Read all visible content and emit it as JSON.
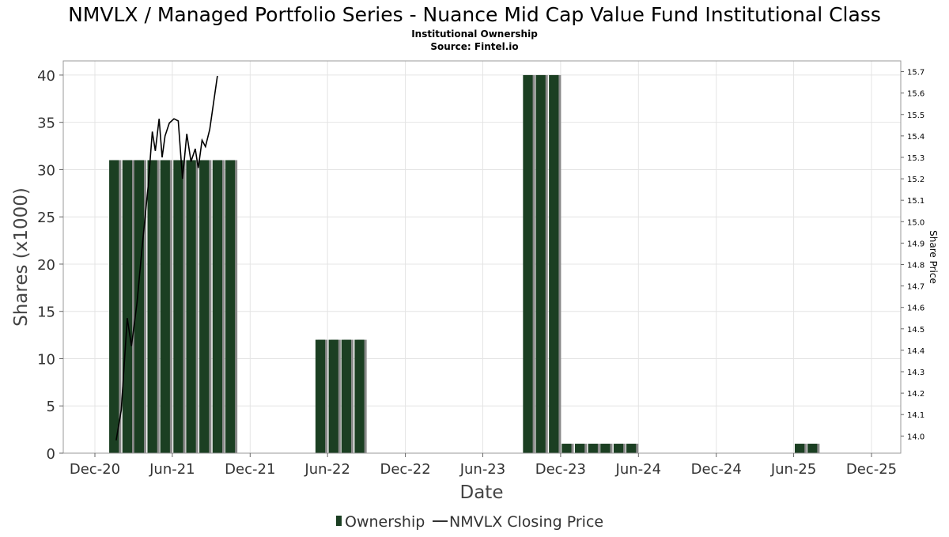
{
  "chart_data": {
    "type": "bar",
    "title": "NMVLX / Managed Portfolio Series - Nuance Mid Cap Value Fund Institutional Class",
    "subtitle": "Institutional Ownership",
    "source": "Source: Fintel.io",
    "xlabel": "Date",
    "ylabel": "Shares (x1000)",
    "y2label": "Share Price",
    "ylim": [
      0,
      41.5
    ],
    "y2lim": [
      13.92,
      15.75
    ],
    "grid": true,
    "legend_position": "bottom-center",
    "x_ticks": [
      "Dec-20",
      "Jun-21",
      "Dec-21",
      "Jun-22",
      "Dec-22",
      "Jun-23",
      "Dec-23",
      "Jun-24",
      "Dec-24",
      "Jun-25",
      "Dec-25"
    ],
    "y_ticks": [
      0,
      5,
      10,
      15,
      20,
      25,
      30,
      35,
      40
    ],
    "y2_ticks": [
      "14.0",
      "14.1",
      "14.2",
      "14.3",
      "14.4",
      "14.5",
      "14.6",
      "14.7",
      "14.8",
      "14.9",
      "15.0",
      "15.1",
      "15.2",
      "15.3",
      "15.4",
      "15.5",
      "15.6",
      "15.7"
    ],
    "series": [
      {
        "name": "Ownership",
        "type": "bar",
        "color": "#1b3f22",
        "points": [
          {
            "date": "2021-01-15",
            "value": 31
          },
          {
            "date": "2021-02-15",
            "value": 31
          },
          {
            "date": "2021-03-15",
            "value": 31
          },
          {
            "date": "2021-04-15",
            "value": 31
          },
          {
            "date": "2021-05-15",
            "value": 31
          },
          {
            "date": "2021-06-15",
            "value": 31
          },
          {
            "date": "2021-07-15",
            "value": 31
          },
          {
            "date": "2021-08-15",
            "value": 31
          },
          {
            "date": "2021-09-15",
            "value": 31
          },
          {
            "date": "2021-10-15",
            "value": 31
          },
          {
            "date": "2022-05-15",
            "value": 12
          },
          {
            "date": "2022-06-15",
            "value": 12
          },
          {
            "date": "2022-07-15",
            "value": 12
          },
          {
            "date": "2022-08-15",
            "value": 12
          },
          {
            "date": "2023-09-15",
            "value": 40
          },
          {
            "date": "2023-10-15",
            "value": 40
          },
          {
            "date": "2023-11-15",
            "value": 40
          },
          {
            "date": "2023-12-15",
            "value": 1
          },
          {
            "date": "2024-01-15",
            "value": 1
          },
          {
            "date": "2024-02-15",
            "value": 1
          },
          {
            "date": "2024-03-15",
            "value": 1
          },
          {
            "date": "2024-04-15",
            "value": 1
          },
          {
            "date": "2024-05-15",
            "value": 1
          },
          {
            "date": "2025-06-15",
            "value": 1
          },
          {
            "date": "2025-07-15",
            "value": 1
          }
        ]
      },
      {
        "name": "NMVLX Closing Price",
        "type": "line",
        "axis": "right",
        "color": "#000000",
        "points": [
          {
            "date": "2021-01-20",
            "value": 13.98
          },
          {
            "date": "2021-02-01",
            "value": 14.12
          },
          {
            "date": "2021-02-15",
            "value": 14.55
          },
          {
            "date": "2021-02-25",
            "value": 14.42
          },
          {
            "date": "2021-03-10",
            "value": 14.62
          },
          {
            "date": "2021-03-22",
            "value": 14.88
          },
          {
            "date": "2021-04-05",
            "value": 15.16
          },
          {
            "date": "2021-04-15",
            "value": 15.42
          },
          {
            "date": "2021-04-22",
            "value": 15.33
          },
          {
            "date": "2021-05-01",
            "value": 15.48
          },
          {
            "date": "2021-05-08",
            "value": 15.3
          },
          {
            "date": "2021-05-15",
            "value": 15.4
          },
          {
            "date": "2021-05-25",
            "value": 15.46
          },
          {
            "date": "2021-06-05",
            "value": 15.48
          },
          {
            "date": "2021-06-15",
            "value": 15.47
          },
          {
            "date": "2021-06-25",
            "value": 15.2
          },
          {
            "date": "2021-07-05",
            "value": 15.41
          },
          {
            "date": "2021-07-15",
            "value": 15.28
          },
          {
            "date": "2021-07-25",
            "value": 15.34
          },
          {
            "date": "2021-08-01",
            "value": 15.25
          },
          {
            "date": "2021-08-10",
            "value": 15.38
          },
          {
            "date": "2021-08-18",
            "value": 15.35
          },
          {
            "date": "2021-08-28",
            "value": 15.43
          },
          {
            "date": "2021-09-15",
            "value": 15.68
          }
        ]
      }
    ]
  }
}
